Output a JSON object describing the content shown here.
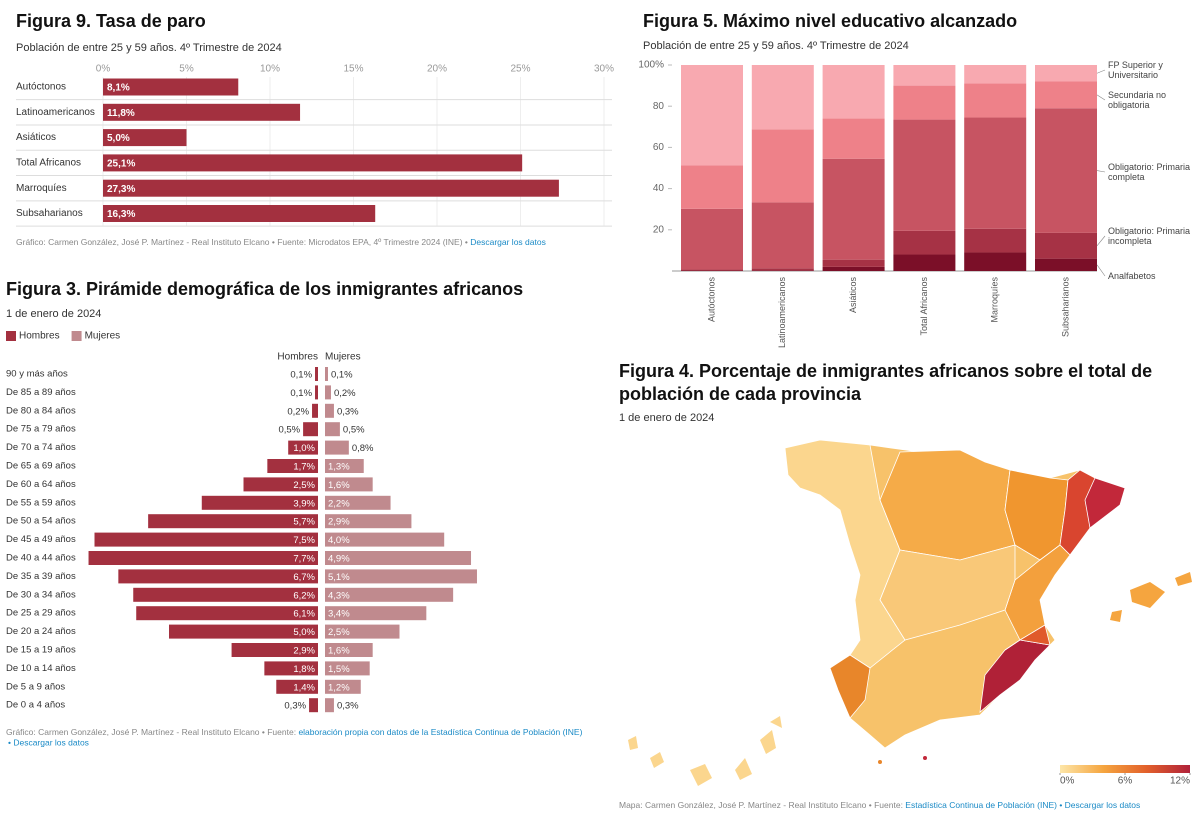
{
  "chart_data": [
    {
      "type": "hbar",
      "title": "Figura 9. Tasa de paro",
      "subtitle": "Población de entre 25 y 59 años. 4º Trimestre de 2024",
      "categories": [
        "Autóctonos",
        "Latinoamericanos",
        "Asiáticos",
        "Total Africanos",
        "Marroquíes",
        "Subsaharianos"
      ],
      "values": [
        8.1,
        11.8,
        5.0,
        25.1,
        27.3,
        16.3
      ],
      "value_labels": [
        "8,1%",
        "11,8%",
        "5,0%",
        "25,1%",
        "27,3%",
        "16,3%"
      ],
      "color": "#a3303f",
      "xlim": [
        0,
        30
      ],
      "xticks": [
        {
          "value": 0,
          "label": "0%"
        },
        {
          "value": 5,
          "label": "5%"
        },
        {
          "value": 10,
          "label": "10%"
        },
        {
          "value": 15,
          "label": "15%"
        },
        {
          "value": 20,
          "label": "20%"
        },
        {
          "value": 25,
          "label": "25%"
        },
        {
          "value": 30,
          "label": "30%"
        }
      ],
      "grid": true,
      "source": "Gráfico: Carmen González, José P. Martínez - Real Instituto Elcano • Fuente: Microdatos EPA, 4º Trimestre 2024 (INE) • ",
      "source_link": "Descargar los datos"
    },
    {
      "type": "stacked_bar",
      "title": "Figura 5. Máximo nivel educativo alcanzado",
      "subtitle": "Población de entre 25 y 59 años. 4º Trimestre de 2024",
      "categories": [
        "Autóctonos",
        "Latinoamericanos",
        "Asiáticos",
        "Total Africanos",
        "Marroquíes",
        "Subsaharianos"
      ],
      "series": [
        {
          "name": "Analfabetos",
          "color": "#7b0f28",
          "values": [
            0.2,
            0.3,
            2,
            8,
            9,
            6
          ]
        },
        {
          "name": "Obligatorio: Primaria incompleta",
          "color": "#a63245",
          "values": [
            0.5,
            1,
            3.5,
            11.5,
            11.5,
            12.5
          ]
        },
        {
          "name": "Obligatorio: Primaria completa",
          "color": "#c75462",
          "values": [
            29.5,
            32,
            49,
            54,
            54,
            60.5
          ]
        },
        {
          "name": "Secundaria no obligatoria",
          "color": "#ee8189",
          "values": [
            21,
            35.5,
            19.5,
            16.5,
            16.5,
            13
          ]
        },
        {
          "name": "FP Superior y Universitario",
          "color": "#f8a9b0",
          "values": [
            48.8,
            31.2,
            26,
            10,
            9,
            8
          ]
        }
      ],
      "ylim": [
        0,
        100
      ],
      "yticks": [
        20,
        40,
        60,
        80,
        {
          "value": 100,
          "label": "100%"
        }
      ]
    },
    {
      "type": "pyramid",
      "title": "Figura 3. Pirámide demográfica de los inmigrantes africanos",
      "subtitle": "1 de enero de 2024",
      "categories": [
        "90 y más años",
        "De 85 a 89 años",
        "De 80 a 84 años",
        "De 75 a 79 años",
        "De 70 a 74 años",
        "De 65 a 69 años",
        "De 60 a 64 años",
        "De 55 a 59 años",
        "De 50 a 54 años",
        "De 45 a 49 años",
        "De 40 a 44 años",
        "De 35 a 39 años",
        "De 30 a 34 años",
        "De 25 a 29 años",
        "De 20 a 24 años",
        "De 15 a 19 años",
        "De 10 a 14 años",
        "De 5 a 9 años",
        "De 0 a 4 años"
      ],
      "series": [
        {
          "name": "Hombres",
          "color": "#a3303f",
          "values": [
            0.1,
            0.1,
            0.2,
            0.5,
            1.0,
            1.7,
            2.5,
            3.9,
            5.7,
            7.5,
            7.7,
            6.7,
            6.2,
            6.1,
            5.0,
            2.9,
            1.8,
            1.4,
            0.3
          ],
          "value_labels": [
            "0,1%",
            "0,1%",
            "0,2%",
            "0,5%",
            "1,0%",
            "1,7%",
            "2,5%",
            "3,9%",
            "5,7%",
            "7,5%",
            "7,7%",
            "6,7%",
            "6,2%",
            "6,1%",
            "5,0%",
            "2,9%",
            "1,8%",
            "1,4%",
            "0,3%"
          ]
        },
        {
          "name": "Mujeres",
          "color": "#c08a8e",
          "values": [
            0.1,
            0.2,
            0.3,
            0.5,
            0.8,
            1.3,
            1.6,
            2.2,
            2.9,
            4.0,
            4.9,
            5.1,
            4.3,
            3.4,
            2.5,
            1.6,
            1.5,
            1.2,
            0.3
          ],
          "value_labels": [
            "0,1%",
            "0,2%",
            "0,3%",
            "0,5%",
            "0,8%",
            "1,3%",
            "1,6%",
            "2,2%",
            "2,9%",
            "4,0%",
            "4,9%",
            "5,1%",
            "4,3%",
            "3,4%",
            "2,5%",
            "1,6%",
            "1,5%",
            "1,2%",
            "0,3%"
          ]
        }
      ],
      "source": "Gráfico: Carmen González, José P. Martínez - Real Instituto Elcano • Fuente: ",
      "source_link": "elaboración propia con datos de la Estadística Continua de Población (INE)",
      "download": "• Descargar los datos"
    },
    {
      "type": "map",
      "title": "Figura 4. Porcentaje de inmigrantes africanos sobre el total de población de cada provincia",
      "subtitle": "1 de enero de 2024",
      "colors": [
        "#fde6a8",
        "#f5a53f",
        "#e2602b",
        "#b0213a"
      ],
      "scale_ticks": [
        {
          "value": 0,
          "label": "0%"
        },
        {
          "value": 6,
          "label": "6%"
        },
        {
          "value": 12,
          "label": "12%"
        }
      ],
      "scale_lim": [
        0,
        12
      ],
      "source": "Mapa: Carmen González, José P. Martínez - Real Instituto Elcano • Fuente: ",
      "source_link": "Estadística Continua de Población (INE)",
      "download": " • Descargar los datos"
    }
  ]
}
